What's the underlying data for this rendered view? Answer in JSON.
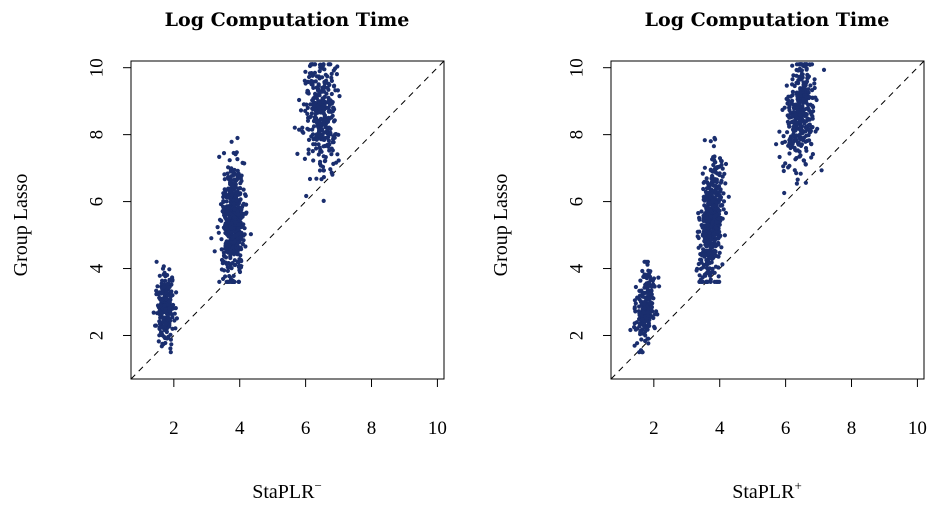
{
  "chart_data": [
    {
      "type": "scatter",
      "title": "Log Computation Time",
      "xlabel_base": "StaPLR",
      "xlabel_sup": "−",
      "ylabel": "Group Lasso",
      "xlim": [
        0.7,
        10.2
      ],
      "ylim": [
        0.7,
        10.2
      ],
      "xticks": [
        2,
        4,
        6,
        8,
        10
      ],
      "yticks": [
        2,
        4,
        6,
        8,
        10
      ],
      "reference_line": "y = x (dashed)",
      "point_color": "#1a2e6e",
      "clusters": [
        {
          "x_center": 1.75,
          "x_spread": 0.25,
          "y_min": 1.5,
          "y_max": 4.2,
          "n": 220
        },
        {
          "x_center": 3.8,
          "x_spread": 0.3,
          "y_min": 3.6,
          "y_max": 7.9,
          "n": 520,
          "y_mean": 5.4
        },
        {
          "x_center": 6.45,
          "x_spread": 0.45,
          "y_min": 5.8,
          "y_max": 10.1,
          "n": 330,
          "y_mean": 8.6
        }
      ]
    },
    {
      "type": "scatter",
      "title": "Log Computation Time",
      "xlabel_base": "StaPLR",
      "xlabel_sup": "+",
      "ylabel": "Group Lasso",
      "xlim": [
        0.7,
        10.2
      ],
      "ylim": [
        0.7,
        10.2
      ],
      "xticks": [
        2,
        4,
        6,
        8,
        10
      ],
      "yticks": [
        2,
        4,
        6,
        8,
        10
      ],
      "reference_line": "y = x (dashed)",
      "point_color": "#1a2e6e",
      "clusters": [
        {
          "x_center": 1.75,
          "x_spread": 0.25,
          "y_min": 1.5,
          "y_max": 4.2,
          "n": 220,
          "slope": true
        },
        {
          "x_center": 3.75,
          "x_spread": 0.3,
          "y_min": 3.6,
          "y_max": 7.9,
          "n": 520,
          "y_mean": 5.4,
          "slope": true
        },
        {
          "x_center": 6.45,
          "x_spread": 0.4,
          "y_min": 5.9,
          "y_max": 10.1,
          "n": 330,
          "y_mean": 8.6,
          "slope": true
        }
      ]
    }
  ]
}
